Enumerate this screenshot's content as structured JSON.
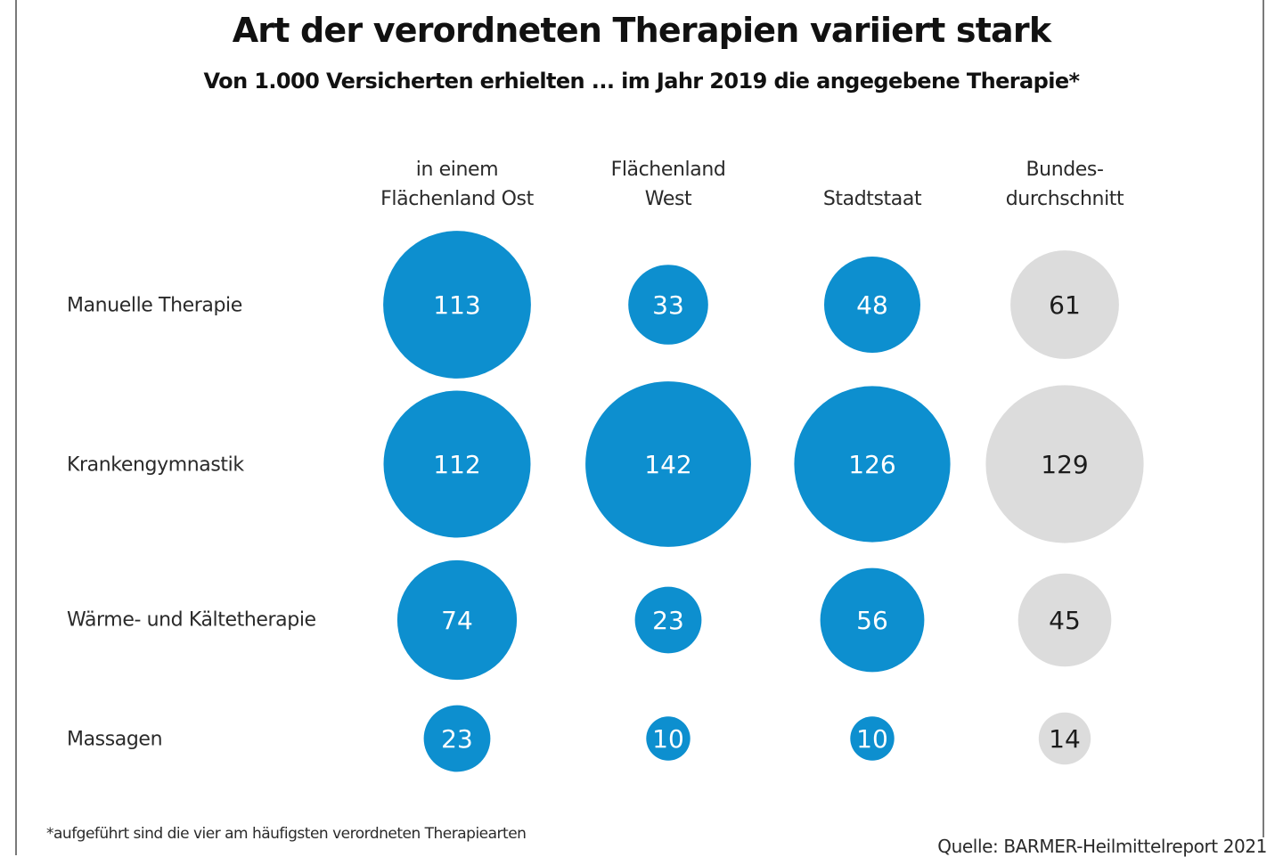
{
  "chart_data": {
    "type": "bubble-table",
    "title": "Art der verordneten Therapien variiert stark",
    "subtitle": "Von 1.000 Versicherten erhielten ... im Jahr 2019 die angegebene Therapie*",
    "columns": [
      {
        "label_lines": [
          "in einem",
          "Flächenland Ost"
        ],
        "color": "#0d8fcf",
        "text_color": "#ffffff"
      },
      {
        "label_lines": [
          "Flächenland",
          "West"
        ],
        "color": "#0d8fcf",
        "text_color": "#ffffff"
      },
      {
        "label_lines": [
          "",
          "Stadtstaat"
        ],
        "color": "#0d8fcf",
        "text_color": "#ffffff"
      },
      {
        "label_lines": [
          "Bundes-",
          "durchschnitt"
        ],
        "color": "#dcdcdc",
        "text_color": "#1c1c1c"
      }
    ],
    "rows": [
      {
        "label": "Manuelle Therapie",
        "values": [
          113,
          33,
          48,
          61
        ]
      },
      {
        "label": "Krankengymnastik",
        "values": [
          112,
          142,
          126,
          129
        ]
      },
      {
        "label": "Wärme- und Kältetherapie",
        "values": [
          74,
          23,
          56,
          45
        ]
      },
      {
        "label": "Massagen",
        "values": [
          23,
          10,
          10,
          14
        ]
      }
    ],
    "unit": "je 1.000 Versicherte",
    "footnote": "*aufgeführt sind die vier am häufigsten verordneten Therapiearten",
    "source": "Quelle: BARMER-Heilmittelreport 2021"
  }
}
